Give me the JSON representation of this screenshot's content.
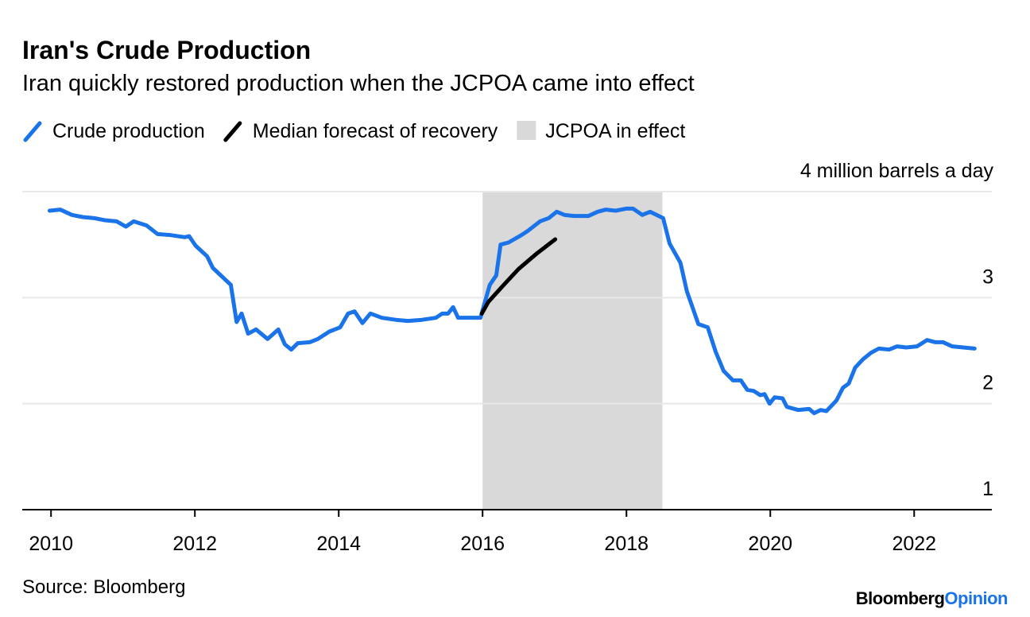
{
  "chart_data": {
    "type": "line",
    "title": "Iran's Crude Production",
    "subtitle": "Iran quickly restored production when the JCPOA came into effect",
    "xlim": [
      2009.6,
      2023.08
    ],
    "xticks": [
      2010,
      2012,
      2014,
      2016,
      2018,
      2020,
      2022
    ],
    "ylim": [
      1,
      4
    ],
    "yticks": [
      1,
      2,
      3,
      {
        "value": 4,
        "label": "4 million barrels a day"
      }
    ],
    "grid": true,
    "shade": {
      "name": "JCPOA in effect",
      "color": "#d9d9d9",
      "x": [
        2016.0,
        2018.5
      ]
    },
    "series": [
      {
        "name": "Crude production",
        "color": "#1a73e8",
        "x": [
          2009.98,
          2010.13,
          2010.29,
          2010.44,
          2010.6,
          2010.75,
          2010.91,
          2011.04,
          2011.15,
          2011.33,
          2011.48,
          2011.66,
          2011.86,
          2011.92,
          2012.01,
          2012.17,
          2012.25,
          2012.5,
          2012.58,
          2012.65,
          2012.74,
          2012.85,
          2013.01,
          2013.16,
          2013.25,
          2013.34,
          2013.43,
          2013.6,
          2013.71,
          2013.87,
          2014.02,
          2014.13,
          2014.22,
          2014.33,
          2014.44,
          2014.6,
          2014.8,
          2014.96,
          2015.15,
          2015.35,
          2015.44,
          2015.52,
          2015.59,
          2015.66,
          2015.97,
          2016.1,
          2016.19,
          2016.25,
          2016.36,
          2016.54,
          2016.63,
          2016.8,
          2016.92,
          2017.03,
          2017.14,
          2017.27,
          2017.47,
          2017.6,
          2017.71,
          2017.85,
          2018.0,
          2018.09,
          2018.22,
          2018.33,
          2018.51,
          2018.6,
          2018.75,
          2018.84,
          2019.0,
          2019.13,
          2019.24,
          2019.35,
          2019.48,
          2019.59,
          2019.68,
          2019.77,
          2019.86,
          2019.92,
          2019.99,
          2020.06,
          2020.17,
          2020.23,
          2020.39,
          2020.54,
          2020.61,
          2020.7,
          2020.78,
          2020.92,
          2021.01,
          2021.09,
          2021.18,
          2021.29,
          2021.4,
          2021.51,
          2021.65,
          2021.76,
          2021.89,
          2022.04,
          2022.18,
          2022.29,
          2022.4,
          2022.53,
          2022.84
        ],
        "values": [
          3.82,
          3.83,
          3.78,
          3.76,
          3.75,
          3.73,
          3.72,
          3.67,
          3.72,
          3.68,
          3.6,
          3.59,
          3.57,
          3.58,
          3.49,
          3.39,
          3.28,
          3.12,
          2.77,
          2.85,
          2.66,
          2.7,
          2.61,
          2.7,
          2.56,
          2.51,
          2.57,
          2.58,
          2.61,
          2.68,
          2.72,
          2.85,
          2.87,
          2.76,
          2.85,
          2.81,
          2.79,
          2.78,
          2.79,
          2.81,
          2.85,
          2.85,
          2.91,
          2.81,
          2.81,
          3.12,
          3.21,
          3.5,
          3.52,
          3.59,
          3.63,
          3.72,
          3.75,
          3.81,
          3.78,
          3.77,
          3.77,
          3.81,
          3.83,
          3.82,
          3.84,
          3.84,
          3.78,
          3.81,
          3.75,
          3.51,
          3.33,
          3.06,
          2.75,
          2.72,
          2.49,
          2.31,
          2.22,
          2.22,
          2.13,
          2.12,
          2.08,
          2.09,
          2.0,
          2.06,
          2.05,
          1.97,
          1.94,
          1.95,
          1.91,
          1.94,
          1.93,
          2.03,
          2.15,
          2.19,
          2.34,
          2.42,
          2.48,
          2.52,
          2.51,
          2.54,
          2.53,
          2.54,
          2.6,
          2.58,
          2.58,
          2.54,
          2.52
        ]
      },
      {
        "name": "Median forecast of recovery",
        "color": "#000000",
        "x": [
          2015.99,
          2016.08,
          2016.28,
          2016.5,
          2016.76,
          2017.01
        ],
        "values": [
          2.85,
          2.96,
          3.11,
          3.27,
          3.42,
          3.55
        ]
      }
    ]
  },
  "footer": {
    "source": "Source: Bloomberg",
    "brand": "Bloomberg",
    "brand_accent": "Opinion"
  }
}
